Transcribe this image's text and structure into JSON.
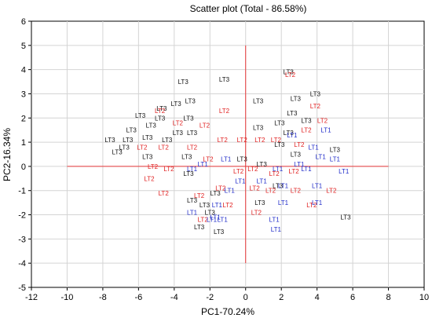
{
  "chart_data": {
    "type": "scatter",
    "title": "Scatter plot (Total - 86.58%)",
    "xlabel": "PC1-70.24%",
    "ylabel": "PC2-16.34%",
    "xlim": [
      -12,
      10
    ],
    "ylim": [
      -5,
      6
    ],
    "xticks": [
      "-12",
      "-10",
      "-8",
      "-6",
      "-4",
      "-2",
      "0",
      "2",
      "4",
      "6",
      "8",
      "10"
    ],
    "yticks": [
      "-5",
      "-4",
      "-3",
      "-2",
      "-1",
      "0",
      "1",
      "2",
      "3",
      "4",
      "5",
      "6"
    ],
    "grid": true,
    "reference_lines": {
      "x": 0,
      "y": 0,
      "x_range": [
        -10,
        8
      ],
      "y_range": [
        -4,
        5
      ],
      "color": "#e8393a"
    },
    "groups": [
      {
        "label": "LT1",
        "color": "#1f2bc9"
      },
      {
        "label": "LT2",
        "color": "#e02020"
      },
      {
        "label": "LT3",
        "color": "#111111"
      }
    ],
    "points": [
      {
        "g": "LT3",
        "x": -3.5,
        "y": 3.5
      },
      {
        "g": "LT3",
        "x": -1.2,
        "y": 3.6
      },
      {
        "g": "LT3",
        "x": -3.9,
        "y": 2.6
      },
      {
        "g": "LT3",
        "x": -3.1,
        "y": 2.7
      },
      {
        "g": "LT3",
        "x": -5.9,
        "y": 2.1
      },
      {
        "g": "LT3",
        "x": -4.7,
        "y": 2.4
      },
      {
        "g": "LT3",
        "x": -4.8,
        "y": 2.0
      },
      {
        "g": "LT3",
        "x": -5.3,
        "y": 1.7
      },
      {
        "g": "LT3",
        "x": -6.4,
        "y": 1.5
      },
      {
        "g": "LT3",
        "x": -5.5,
        "y": 1.2
      },
      {
        "g": "LT3",
        "x": -6.6,
        "y": 1.1
      },
      {
        "g": "LT3",
        "x": -7.6,
        "y": 1.1
      },
      {
        "g": "LT3",
        "x": -6.8,
        "y": 0.8
      },
      {
        "g": "LT3",
        "x": -7.2,
        "y": 0.6
      },
      {
        "g": "LT3",
        "x": -3.8,
        "y": 1.4
      },
      {
        "g": "LT3",
        "x": -3.0,
        "y": 1.4
      },
      {
        "g": "LT3",
        "x": -4.4,
        "y": 1.1
      },
      {
        "g": "LT3",
        "x": -3.3,
        "y": 0.4
      },
      {
        "g": "LT3",
        "x": -5.5,
        "y": 0.4
      },
      {
        "g": "LT3",
        "x": -3.2,
        "y": 2.0
      },
      {
        "g": "LT3",
        "x": 0.7,
        "y": 2.7
      },
      {
        "g": "LT3",
        "x": 2.4,
        "y": 3.9
      },
      {
        "g": "LT3",
        "x": 3.9,
        "y": 3.0
      },
      {
        "g": "LT3",
        "x": 2.8,
        "y": 2.8
      },
      {
        "g": "LT3",
        "x": 2.6,
        "y": 2.2
      },
      {
        "g": "LT3",
        "x": 1.9,
        "y": 1.8
      },
      {
        "g": "LT3",
        "x": 0.7,
        "y": 1.6
      },
      {
        "g": "LT3",
        "x": 2.4,
        "y": 1.4
      },
      {
        "g": "LT3",
        "x": 3.4,
        "y": 1.9
      },
      {
        "g": "LT3",
        "x": -0.2,
        "y": 0.3
      },
      {
        "g": "LT3",
        "x": 1.9,
        "y": 0.9
      },
      {
        "g": "LT3",
        "x": 2.8,
        "y": 0.5
      },
      {
        "g": "LT3",
        "x": 5.0,
        "y": 0.7
      },
      {
        "g": "LT3",
        "x": -1.7,
        "y": -1.1
      },
      {
        "g": "LT3",
        "x": -3.0,
        "y": -1.4
      },
      {
        "g": "LT3",
        "x": -2.0,
        "y": -1.9
      },
      {
        "g": "LT3",
        "x": -2.6,
        "y": -2.5
      },
      {
        "g": "LT3",
        "x": -1.5,
        "y": -2.7
      },
      {
        "g": "LT3",
        "x": -2.3,
        "y": -1.6
      },
      {
        "g": "LT3",
        "x": 0.8,
        "y": -1.5
      },
      {
        "g": "LT3",
        "x": 1.8,
        "y": -0.8
      },
      {
        "g": "LT3",
        "x": 5.6,
        "y": -2.1
      },
      {
        "g": "LT3",
        "x": 0.9,
        "y": 0.1
      },
      {
        "g": "LT3",
        "x": -3.2,
        "y": -0.3
      },
      {
        "g": "LT2",
        "x": -4.8,
        "y": 2.3
      },
      {
        "g": "LT2",
        "x": -3.8,
        "y": 1.8
      },
      {
        "g": "LT2",
        "x": -1.2,
        "y": 2.3
      },
      {
        "g": "LT2",
        "x": -2.3,
        "y": 1.7
      },
      {
        "g": "LT2",
        "x": -1.3,
        "y": 1.1
      },
      {
        "g": "LT2",
        "x": -5.8,
        "y": 0.8
      },
      {
        "g": "LT2",
        "x": -4.6,
        "y": 0.8
      },
      {
        "g": "LT2",
        "x": -3.0,
        "y": 0.8
      },
      {
        "g": "LT2",
        "x": -5.2,
        "y": 0.0
      },
      {
        "g": "LT2",
        "x": -5.4,
        "y": -0.5
      },
      {
        "g": "LT2",
        "x": -4.3,
        "y": -0.1
      },
      {
        "g": "LT2",
        "x": -2.1,
        "y": 0.3
      },
      {
        "g": "LT2",
        "x": -0.2,
        "y": 1.1
      },
      {
        "g": "LT2",
        "x": 0.8,
        "y": 1.1
      },
      {
        "g": "LT2",
        "x": 1.7,
        "y": 1.1
      },
      {
        "g": "LT2",
        "x": 2.5,
        "y": 3.8
      },
      {
        "g": "LT2",
        "x": 3.9,
        "y": 2.5
      },
      {
        "g": "LT2",
        "x": 4.3,
        "y": 1.9
      },
      {
        "g": "LT2",
        "x": 3.4,
        "y": 1.5
      },
      {
        "g": "LT2",
        "x": 3.0,
        "y": 0.9
      },
      {
        "g": "LT2",
        "x": 0.4,
        "y": -0.1
      },
      {
        "g": "LT2",
        "x": 1.6,
        "y": -0.3
      },
      {
        "g": "LT2",
        "x": 2.7,
        "y": -0.2
      },
      {
        "g": "LT2",
        "x": -2.6,
        "y": -1.2
      },
      {
        "g": "LT2",
        "x": -1.4,
        "y": -0.9
      },
      {
        "g": "LT2",
        "x": -2.4,
        "y": -2.2
      },
      {
        "g": "LT2",
        "x": 0.5,
        "y": -0.9
      },
      {
        "g": "LT2",
        "x": 1.4,
        "y": -1.0
      },
      {
        "g": "LT2",
        "x": 2.8,
        "y": -1.0
      },
      {
        "g": "LT2",
        "x": 4.8,
        "y": -1.0
      },
      {
        "g": "LT2",
        "x": 3.7,
        "y": -1.6
      },
      {
        "g": "LT2",
        "x": 0.6,
        "y": -1.9
      },
      {
        "g": "LT2",
        "x": -1.0,
        "y": -1.6
      },
      {
        "g": "LT2",
        "x": -0.4,
        "y": -0.2
      },
      {
        "g": "LT2",
        "x": -4.6,
        "y": -1.1
      },
      {
        "g": "LT1",
        "x": 2.6,
        "y": 1.3
      },
      {
        "g": "LT1",
        "x": 4.5,
        "y": 1.5
      },
      {
        "g": "LT1",
        "x": 3.8,
        "y": 0.8
      },
      {
        "g": "LT1",
        "x": 4.2,
        "y": 0.4
      },
      {
        "g": "LT1",
        "x": 5.0,
        "y": 0.3
      },
      {
        "g": "LT1",
        "x": 5.5,
        "y": -0.2
      },
      {
        "g": "LT1",
        "x": 3.4,
        "y": -0.1
      },
      {
        "g": "LT1",
        "x": 1.8,
        "y": -0.1
      },
      {
        "g": "LT1",
        "x": 0.9,
        "y": -0.6
      },
      {
        "g": "LT1",
        "x": 2.1,
        "y": -0.8
      },
      {
        "g": "LT1",
        "x": 4.0,
        "y": -0.8
      },
      {
        "g": "LT1",
        "x": 2.1,
        "y": -1.5
      },
      {
        "g": "LT1",
        "x": 4.0,
        "y": -1.5
      },
      {
        "g": "LT1",
        "x": 1.6,
        "y": -2.2
      },
      {
        "g": "LT1",
        "x": -0.9,
        "y": -1.0
      },
      {
        "g": "LT1",
        "x": -3.0,
        "y": -0.1
      },
      {
        "g": "LT1",
        "x": -2.4,
        "y": 0.1
      },
      {
        "g": "LT1",
        "x": -1.1,
        "y": 0.3
      },
      {
        "g": "LT1",
        "x": -3.0,
        "y": -1.9
      },
      {
        "g": "LT1",
        "x": -1.6,
        "y": -1.6
      },
      {
        "g": "LT1",
        "x": -1.7,
        "y": -2.1
      },
      {
        "g": "LT1",
        "x": -1.3,
        "y": -2.2
      },
      {
        "g": "LT1",
        "x": 1.7,
        "y": -2.6
      },
      {
        "g": "LT1",
        "x": -0.3,
        "y": -0.6
      },
      {
        "g": "LT1",
        "x": 3.0,
        "y": 0.1
      },
      {
        "g": "LT1",
        "x": -1.9,
        "y": -2.2
      }
    ]
  }
}
